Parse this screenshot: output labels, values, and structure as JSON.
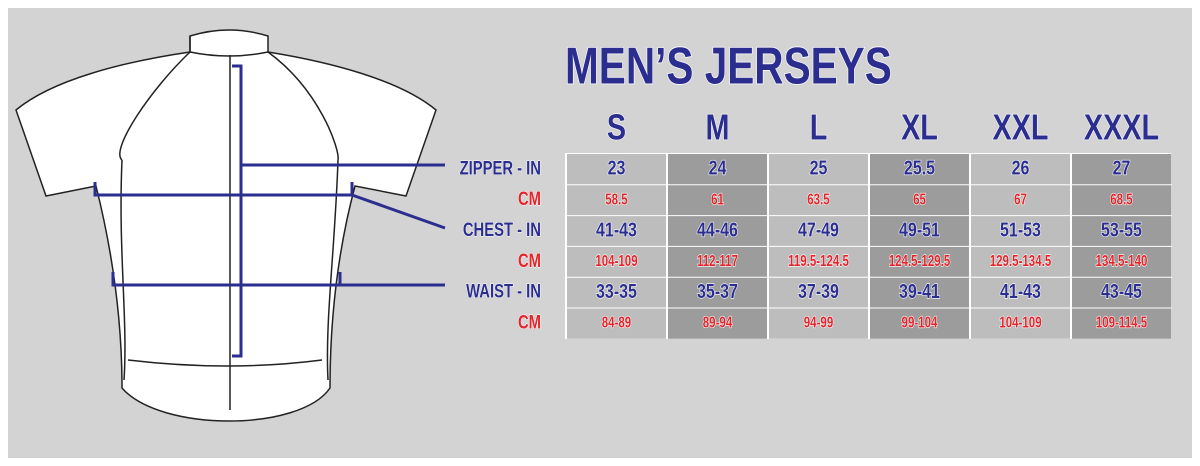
{
  "title": "MEN’S JERSEYS",
  "sizes": [
    "S",
    "M",
    "L",
    "XL",
    "XXL",
    "XXXL"
  ],
  "rows": [
    {
      "label": "ZIPPER - IN",
      "unit": "in",
      "values": [
        "23",
        "24",
        "25",
        "25.5",
        "26",
        "27"
      ]
    },
    {
      "label": "CM",
      "unit": "cm",
      "values": [
        "58.5",
        "61",
        "63.5",
        "65",
        "67",
        "68.5"
      ]
    },
    {
      "label": "CHEST - IN",
      "unit": "in",
      "values": [
        "41-43",
        "44-46",
        "47-49",
        "49-51",
        "51-53",
        "53-55"
      ]
    },
    {
      "label": "CM",
      "unit": "cm",
      "values": [
        "104-109",
        "112-117",
        "119.5-124.5",
        "124.5-129.5",
        "129.5-134.5",
        "134.5-140"
      ]
    },
    {
      "label": "WAIST - IN",
      "unit": "in",
      "values": [
        "33-35",
        "35-37",
        "37-39",
        "39-41",
        "41-43",
        "43-45"
      ]
    },
    {
      "label": "CM",
      "unit": "cm",
      "values": [
        "84-89",
        "89-94",
        "94-99",
        "99-104",
        "104-109",
        "109-114.5"
      ]
    }
  ]
}
